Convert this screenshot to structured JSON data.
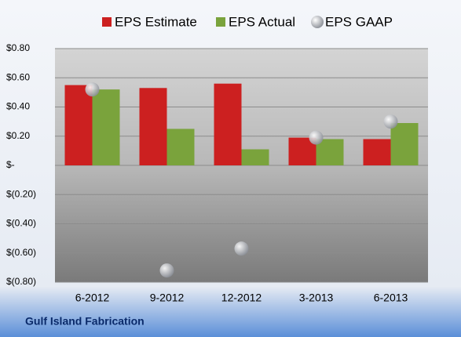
{
  "chart_data": {
    "type": "bar",
    "categories": [
      "6-2012",
      "9-2012",
      "12-2012",
      "3-2013",
      "6-2013"
    ],
    "series": [
      {
        "name": "EPS Estimate",
        "color": "#cc2020",
        "values": [
          0.55,
          0.53,
          0.56,
          0.19,
          0.18
        ]
      },
      {
        "name": "EPS Actual",
        "color": "#7aa33c",
        "values": [
          0.52,
          0.25,
          0.11,
          0.18,
          0.29
        ]
      },
      {
        "name": "EPS GAAP",
        "color": "#b8bcc4",
        "marker": "circle",
        "values": [
          0.52,
          -0.72,
          -0.57,
          0.19,
          0.3
        ]
      }
    ],
    "ylim": [
      -0.8,
      0.8
    ],
    "yticks": [
      {
        "value": -0.8,
        "label": "$(0.80)"
      },
      {
        "value": -0.6,
        "label": "$(0.60)"
      },
      {
        "value": -0.4,
        "label": "$(0.40)"
      },
      {
        "value": -0.2,
        "label": "$(0.20)"
      },
      {
        "value": 0,
        "label": "$-"
      },
      {
        "value": 0.2,
        "label": "$0.20"
      },
      {
        "value": 0.4,
        "label": "$0.40"
      },
      {
        "value": 0.6,
        "label": "$0.60"
      },
      {
        "value": 0.8,
        "label": "$0.80"
      }
    ],
    "grid": true,
    "legend": "top",
    "footer": "Gulf Island Fabrication"
  }
}
